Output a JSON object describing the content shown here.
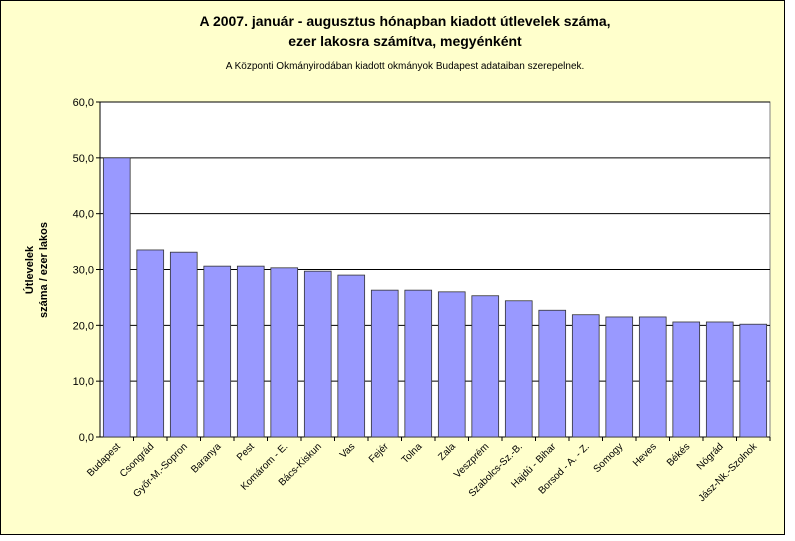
{
  "chart_data": {
    "type": "bar",
    "title": [
      "A 2007. január - augusztus hónapban kiadott útlevelek száma,",
      "ezer lakosra számítva, megyénként"
    ],
    "subtitle": "A Központi Okmányirodában kiadott okmányok Budapest adataiban szerepelnek.",
    "ylabel": [
      "Útlevelek",
      "száma / ezer lakos"
    ],
    "categories": [
      "Budapest",
      "Csongrád",
      "Győr-M.-Sopron",
      "Baranya",
      "Pest",
      "Komárom - E.",
      "Bács-Kiskun",
      "Vas",
      "Fejér",
      "Tolna",
      "Zala",
      "Veszprém",
      "Szabolcs-Sz.-B.",
      "Hajdú - Bihar",
      "Borsod - A. - Z.",
      "Somogy",
      "Heves",
      "Békés",
      "Nógrád",
      "Jász-Nk.-Szolnok"
    ],
    "values": [
      50.0,
      33.5,
      33.1,
      30.6,
      30.6,
      30.3,
      29.7,
      29.0,
      26.3,
      26.3,
      26.0,
      25.3,
      24.4,
      22.7,
      21.9,
      21.5,
      21.5,
      20.6,
      20.6,
      20.2
    ],
    "color": "#9999ff",
    "ylim": [
      0,
      60
    ],
    "yticks": [
      {
        "value": 0,
        "label": "0,0"
      },
      {
        "value": 10,
        "label": "10,0"
      },
      {
        "value": 20,
        "label": "20,0"
      },
      {
        "value": 30,
        "label": "30,0"
      },
      {
        "value": 40,
        "label": "40,0"
      },
      {
        "value": 50,
        "label": "50,0"
      },
      {
        "value": 60,
        "label": "60,0"
      }
    ],
    "grid": true
  }
}
